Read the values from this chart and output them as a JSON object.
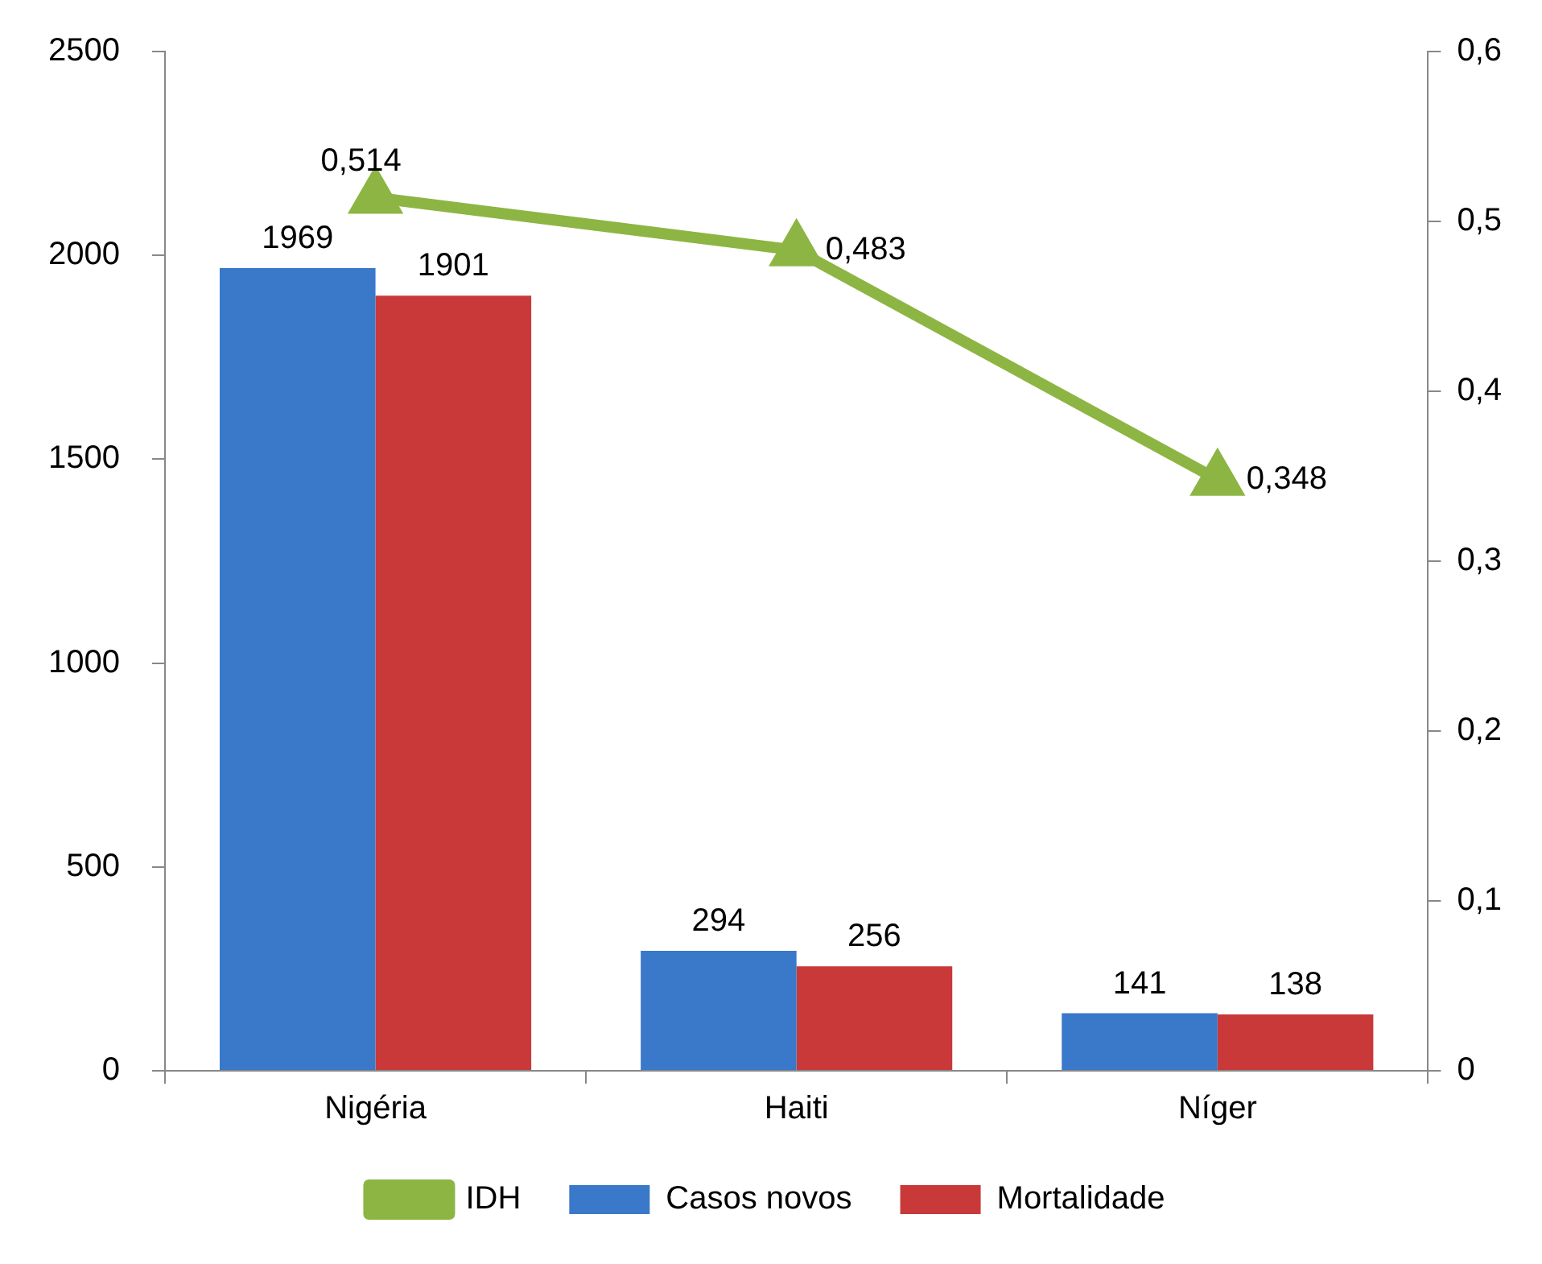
{
  "chart_data": {
    "type": "bar",
    "categories": [
      "Nigéria",
      "Haiti",
      "Níger"
    ],
    "series": [
      {
        "name": "Casos novos",
        "color": "#3a78c9",
        "values": [
          1969,
          294,
          141
        ],
        "value_labels": [
          "1969",
          "294",
          "141"
        ]
      },
      {
        "name": "Mortalidade",
        "color": "#c9393a",
        "values": [
          1901,
          256,
          138
        ],
        "value_labels": [
          "1901",
          "256",
          "138"
        ]
      },
      {
        "name": "IDH",
        "type": "line",
        "axis": "y2",
        "color": "#8db543",
        "marker": "triangle",
        "values": [
          0.514,
          0.483,
          0.348
        ],
        "value_labels": [
          "0,514",
          "0,483",
          "0,348"
        ]
      }
    ],
    "ylim": [
      0,
      2500
    ],
    "yticks": [
      0,
      500,
      1000,
      1500,
      2000,
      2500
    ],
    "y2lim": [
      0,
      0.6
    ],
    "y2ticks": [
      0,
      {
        "value": 0.1,
        "label": "0,1"
      },
      {
        "value": 0.2,
        "label": "0,2"
      },
      {
        "value": 0.3,
        "label": "0,3"
      },
      {
        "value": 0.4,
        "label": "0,4"
      },
      {
        "value": 0.5,
        "label": "0,5"
      },
      {
        "value": 0.6,
        "label": "0,6"
      }
    ],
    "grid": false,
    "legend": "bottom"
  }
}
